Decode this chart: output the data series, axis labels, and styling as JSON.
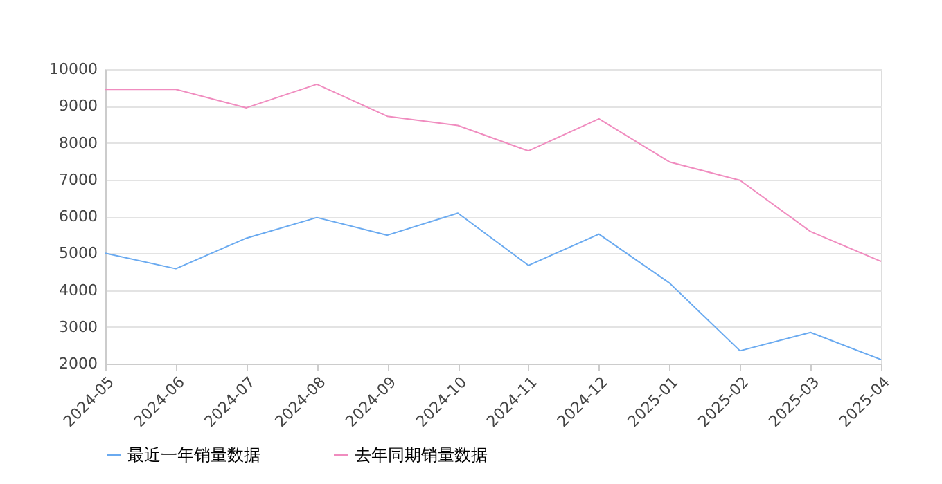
{
  "chart_data": {
    "type": "line",
    "categories": [
      "2024-05",
      "2024-06",
      "2024-07",
      "2024-08",
      "2024-09",
      "2024-10",
      "2024-11",
      "2024-12",
      "2025-01",
      "2025-02",
      "2025-03",
      "2025-04"
    ],
    "series": [
      {
        "name": "最近一年销量数据",
        "color": "#6aaaf0",
        "values": [
          5000,
          4580,
          5410,
          5970,
          5490,
          6090,
          4670,
          5520,
          4190,
          2350,
          2850,
          2110
        ]
      },
      {
        "name": "去年同期销量数据",
        "color": "#f08cbf",
        "values": [
          9450,
          9450,
          8950,
          9590,
          8720,
          8470,
          7780,
          8650,
          7480,
          6980,
          5590,
          4780
        ]
      }
    ],
    "ylim": [
      2000,
      10000
    ],
    "yticks": [
      2000,
      3000,
      4000,
      5000,
      6000,
      7000,
      8000,
      9000,
      10000
    ],
    "grid": "y",
    "legend": "bottom",
    "marker": "none",
    "line_style": "solid"
  }
}
